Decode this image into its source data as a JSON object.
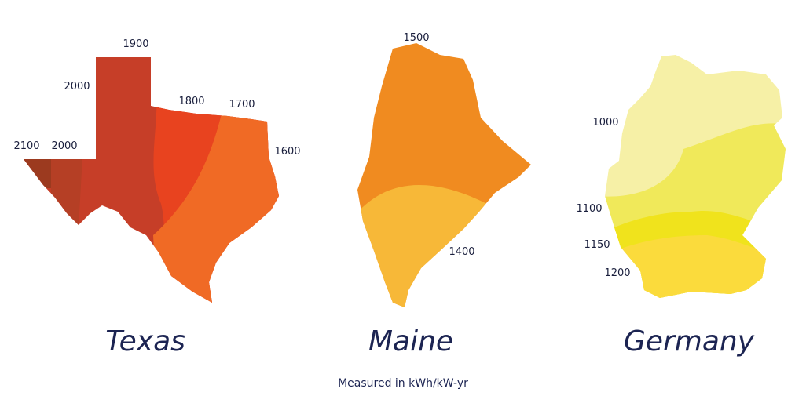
{
  "maps": [
    {
      "name": "Texas",
      "contours": [
        1900,
        2000,
        2100,
        2000,
        1800,
        1700,
        1600
      ]
    },
    {
      "name": "Maine",
      "contours": [
        1500,
        1400
      ]
    },
    {
      "name": "Germany",
      "contours": [
        1000,
        1100,
        1150,
        1200
      ]
    }
  ],
  "footnote": "Measured in kWh/kW-yr"
}
